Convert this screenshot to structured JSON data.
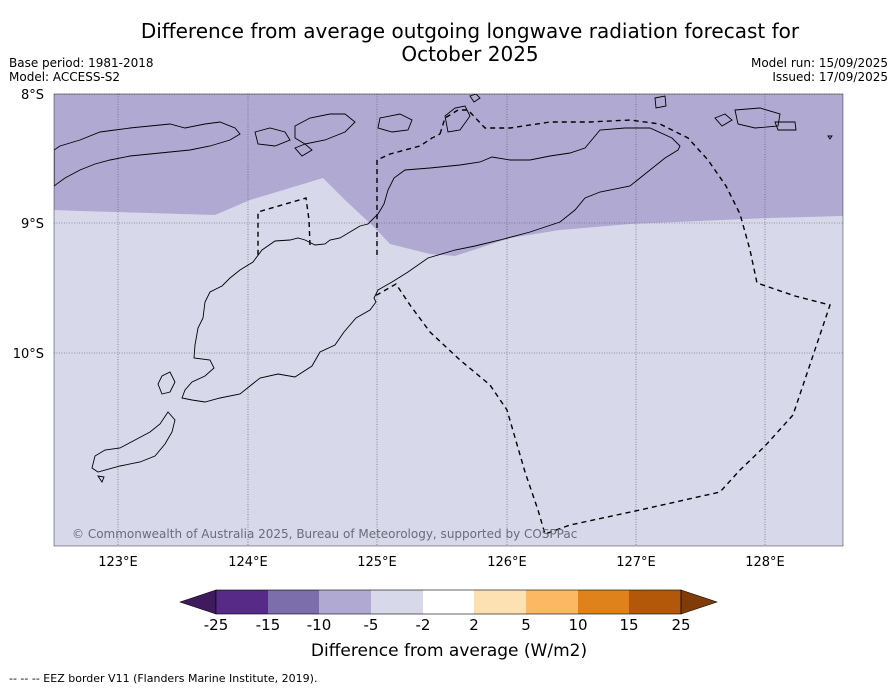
{
  "title": "Difference from average outgoing longwave radiation forecast for October 2025",
  "meta_left": [
    "Base period: 1981-2018",
    "Model: ACCESS-S2"
  ],
  "meta_right": [
    "Model run: 15/09/2025",
    "Issued: 17/09/2025"
  ],
  "latitude_labels": [
    "8°S",
    "9°S",
    "10°S"
  ],
  "longitude_labels": [
    "123°E",
    "124°E",
    "125°E",
    "126°E",
    "127°E",
    "128°E"
  ],
  "copyright": "© Commonwealth of Australia 2025, Bureau of Meteorology, supported by COSPPac",
  "colorbar": {
    "title": "Difference from average (W/m2)",
    "ticks": [
      "-25",
      "-15",
      "-10",
      "-5",
      "-2",
      "2",
      "5",
      "10",
      "15",
      "25"
    ],
    "colors": [
      "#3f1a5f",
      "#562a86",
      "#7c6eaa",
      "#b0aad3",
      "#d7d8ea",
      "#ffffff",
      "#fee1b3",
      "#fdb863",
      "#e0821b",
      "#b35808",
      "#7f3b08"
    ]
  },
  "footnote": "--  --  -- EEZ border V11 (Flanders Marine Institute, 2019).",
  "fill_colors": {
    "light": "#d7d8ea",
    "medium": "#b0aad3"
  }
}
